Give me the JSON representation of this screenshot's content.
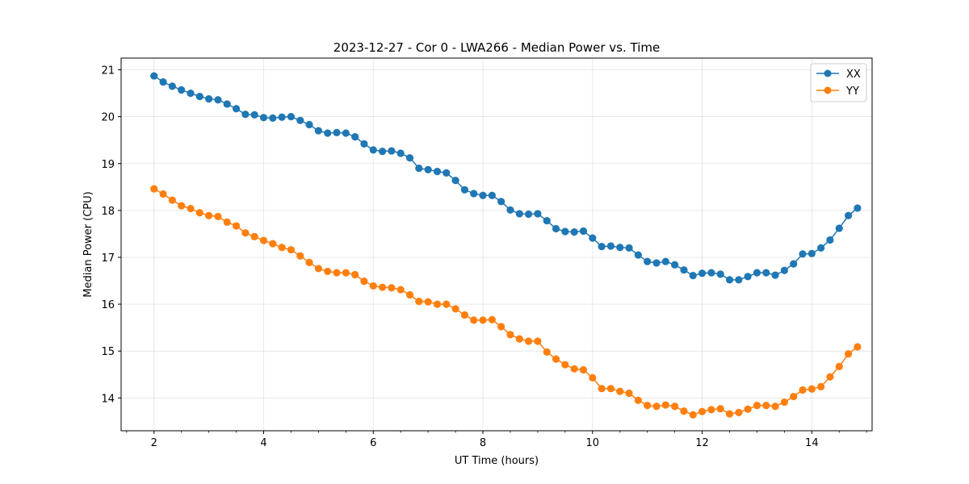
{
  "chart_data": {
    "type": "line",
    "title": "2023-12-27 - Cor 0 - LWA266 - Median Power vs. Time",
    "xlabel": "UT Time (hours)",
    "ylabel": "Median Power (CPU)",
    "xlim": [
      1.4,
      15.1
    ],
    "ylim": [
      13.3,
      21.25
    ],
    "xticks": [
      "2",
      "4",
      "6",
      "8",
      "10",
      "12",
      "14"
    ],
    "yticks": [
      "14",
      "15",
      "16",
      "17",
      "18",
      "19",
      "20",
      "21"
    ],
    "grid": true,
    "legend_position": "top-right",
    "x": [
      2.0,
      2.167,
      2.333,
      2.5,
      2.667,
      2.833,
      3.0,
      3.167,
      3.333,
      3.5,
      3.667,
      3.833,
      4.0,
      4.167,
      4.333,
      4.5,
      4.667,
      4.833,
      5.0,
      5.167,
      5.333,
      5.5,
      5.667,
      5.833,
      6.0,
      6.167,
      6.333,
      6.5,
      6.667,
      6.833,
      7.0,
      7.167,
      7.333,
      7.5,
      7.667,
      7.833,
      8.0,
      8.167,
      8.333,
      8.5,
      8.667,
      8.833,
      9.0,
      9.167,
      9.333,
      9.5,
      9.667,
      9.833,
      10.0,
      10.167,
      10.333,
      10.5,
      10.667,
      10.833,
      11.0,
      11.167,
      11.333,
      11.5,
      11.667,
      11.833,
      12.0,
      12.167,
      12.333,
      12.5,
      12.667,
      12.833,
      13.0,
      13.167,
      13.333,
      13.5,
      13.667,
      13.833,
      14.0,
      14.167,
      14.333,
      14.5,
      14.667,
      14.833
    ],
    "series": [
      {
        "name": "XX",
        "color": "#1f77b4",
        "values": [
          20.87,
          20.74,
          20.65,
          20.57,
          20.5,
          20.43,
          20.38,
          20.36,
          20.27,
          20.17,
          20.05,
          20.04,
          19.98,
          19.97,
          19.99,
          20.0,
          19.92,
          19.83,
          19.7,
          19.65,
          19.66,
          19.65,
          19.57,
          19.42,
          19.29,
          19.26,
          19.27,
          19.22,
          19.12,
          18.9,
          18.87,
          18.83,
          18.8,
          18.64,
          18.44,
          18.36,
          18.32,
          18.32,
          18.19,
          18.01,
          17.93,
          17.92,
          17.93,
          17.78,
          17.61,
          17.55,
          17.54,
          17.56,
          17.41,
          17.23,
          17.24,
          17.21,
          17.2,
          17.05,
          16.91,
          16.88,
          16.91,
          16.84,
          16.73,
          16.61,
          16.66,
          16.67,
          16.64,
          16.52,
          16.52,
          16.59,
          16.67,
          16.67,
          16.62,
          16.72,
          16.86,
          17.07,
          17.08,
          17.2,
          17.37,
          17.62,
          17.89,
          18.05
        ]
      },
      {
        "name": "YY",
        "color": "#ff7f0e",
        "values": [
          18.46,
          18.35,
          18.22,
          18.1,
          18.04,
          17.95,
          17.89,
          17.87,
          17.75,
          17.67,
          17.52,
          17.44,
          17.36,
          17.29,
          17.21,
          17.16,
          17.03,
          16.89,
          16.76,
          16.7,
          16.67,
          16.67,
          16.63,
          16.49,
          16.39,
          16.36,
          16.35,
          16.31,
          16.2,
          16.06,
          16.05,
          16.0,
          16.0,
          15.9,
          15.77,
          15.66,
          15.66,
          15.67,
          15.52,
          15.35,
          15.26,
          15.21,
          15.21,
          14.98,
          14.83,
          14.71,
          14.62,
          14.6,
          14.43,
          14.2,
          14.2,
          14.14,
          14.1,
          13.95,
          13.84,
          13.82,
          13.85,
          13.82,
          13.72,
          13.64,
          13.71,
          13.75,
          13.77,
          13.66,
          13.69,
          13.76,
          13.84,
          13.84,
          13.82,
          13.91,
          14.03,
          14.17,
          14.19,
          14.24,
          14.45,
          14.67,
          14.94,
          15.09
        ]
      }
    ]
  }
}
